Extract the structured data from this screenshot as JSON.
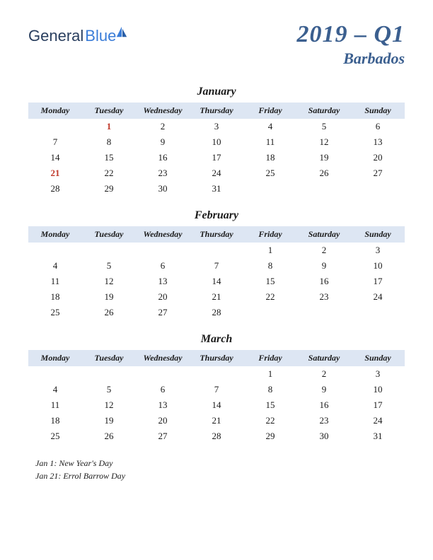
{
  "logo": {
    "part1": "General",
    "part2": "Blue"
  },
  "title": {
    "main": "2019 – Q1",
    "sub": "Barbados"
  },
  "colors": {
    "header_bg": "#dde6f3",
    "title_color": "#3b5f8f",
    "holiday_color": "#c0392b",
    "text_color": "#1a1a1a"
  },
  "weekdays": [
    "Monday",
    "Tuesday",
    "Wednesday",
    "Thursday",
    "Friday",
    "Saturday",
    "Sunday"
  ],
  "months": [
    {
      "name": "January",
      "weeks": [
        [
          "",
          "1",
          "2",
          "3",
          "4",
          "5",
          "6"
        ],
        [
          "7",
          "8",
          "9",
          "10",
          "11",
          "12",
          "13"
        ],
        [
          "14",
          "15",
          "16",
          "17",
          "18",
          "19",
          "20"
        ],
        [
          "21",
          "22",
          "23",
          "24",
          "25",
          "26",
          "27"
        ],
        [
          "28",
          "29",
          "30",
          "31",
          "",
          "",
          ""
        ]
      ],
      "holidays": [
        "1",
        "21"
      ]
    },
    {
      "name": "February",
      "weeks": [
        [
          "",
          "",
          "",
          "",
          "1",
          "2",
          "3"
        ],
        [
          "4",
          "5",
          "6",
          "7",
          "8",
          "9",
          "10"
        ],
        [
          "11",
          "12",
          "13",
          "14",
          "15",
          "16",
          "17"
        ],
        [
          "18",
          "19",
          "20",
          "21",
          "22",
          "23",
          "24"
        ],
        [
          "25",
          "26",
          "27",
          "28",
          "",
          "",
          ""
        ]
      ],
      "holidays": []
    },
    {
      "name": "March",
      "weeks": [
        [
          "",
          "",
          "",
          "",
          "1",
          "2",
          "3"
        ],
        [
          "4",
          "5",
          "6",
          "7",
          "8",
          "9",
          "10"
        ],
        [
          "11",
          "12",
          "13",
          "14",
          "15",
          "16",
          "17"
        ],
        [
          "18",
          "19",
          "20",
          "21",
          "22",
          "23",
          "24"
        ],
        [
          "25",
          "26",
          "27",
          "28",
          "29",
          "30",
          "31"
        ]
      ],
      "holidays": []
    }
  ],
  "holiday_notes": [
    "Jan 1: New Year's Day",
    "Jan 21: Errol Barrow Day"
  ]
}
